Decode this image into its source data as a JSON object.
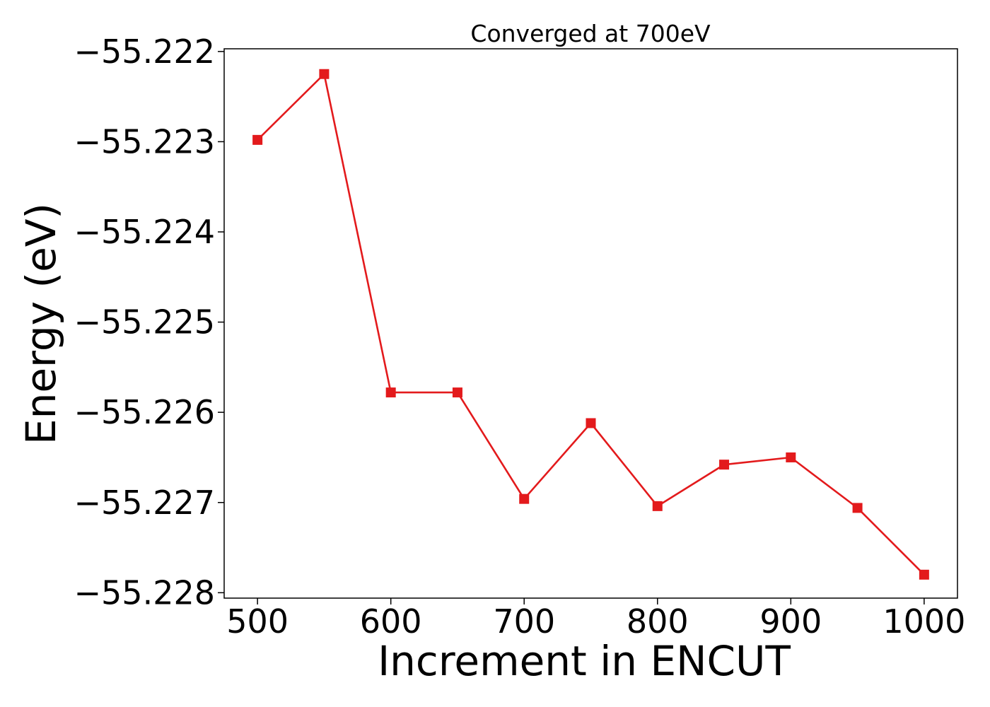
{
  "chart_data": {
    "type": "line",
    "title": "Converged at 700eV",
    "xlabel": "Increment in ENCUT",
    "ylabel": "Energy (eV)",
    "xlim": [
      475,
      1025
    ],
    "ylim": [
      -55.22806,
      -55.22197
    ],
    "xticks": [
      500,
      600,
      700,
      800,
      900,
      1000
    ],
    "xtick_labels": [
      "500",
      "600",
      "700",
      "800",
      "900",
      "1000"
    ],
    "yticks": [
      -55.222,
      -55.223,
      -55.224,
      -55.225,
      -55.226,
      -55.227,
      -55.228
    ],
    "ytick_labels": [
      "−55.222",
      "−55.223",
      "−55.224",
      "−55.225",
      "−55.226",
      "−55.227",
      "−55.228"
    ],
    "grid": false,
    "series": [
      {
        "color": "#e31a1c",
        "marker": "square",
        "x": [
          500,
          550,
          600,
          650,
          700,
          750,
          800,
          850,
          900,
          950,
          1000
        ],
        "y": [
          -55.22298,
          -55.22225,
          -55.22578,
          -55.22578,
          -55.22696,
          -55.22612,
          -55.22704,
          -55.22658,
          -55.2265,
          -55.22706,
          -55.2278
        ]
      }
    ]
  }
}
